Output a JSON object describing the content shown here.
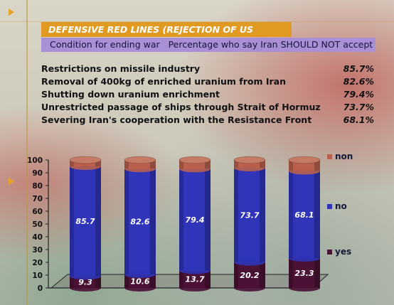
{
  "title": "DEFENSIVE RED LINES (REJECTION OF US CONDITIONS)",
  "subtitle_left": "Condition for ending war",
  "subtitle_right": "Percentage who say Iran SHOULD NOT accept",
  "conditions": [
    {
      "label": "Restrictions on missile industry",
      "value": "85.7%"
    },
    {
      "label": "Removal of 400kg of enriched uranium from Iran",
      "value": "82.6%"
    },
    {
      "label": "Shutting down uranium enrichment",
      "value": "79.4%"
    },
    {
      "label": "Unrestricted passage of ships through Strait of Hormuz",
      "value": "73.7%"
    },
    {
      "label": "Severing Iran's cooperation with the Resistance Front",
      "value": "68.1%"
    }
  ],
  "colors": {
    "accent": "#e19a21",
    "subtitle_bg": "#a98fd4",
    "yes": "#4a1235",
    "no": "#2f34b8",
    "non": "#b8614d"
  },
  "chart_data": {
    "type": "bar",
    "stacked": true,
    "categories": [
      "",
      "",
      "",
      "",
      ""
    ],
    "series": [
      {
        "name": "yes",
        "values": [
          9.3,
          10.6,
          13.7,
          20.2,
          23.3
        ],
        "color": "#4a1235"
      },
      {
        "name": "no",
        "values": [
          85.7,
          82.6,
          79.4,
          73.7,
          68.1
        ],
        "color": "#2f34b8"
      },
      {
        "name": "non",
        "values": [
          5,
          6.8,
          6.9,
          6.1,
          8.6
        ],
        "color": "#b8614d"
      }
    ],
    "value_labels": [
      [
        "9.3",
        "10.6",
        "13.7",
        "20.2",
        "23.3"
      ],
      [
        "85.7",
        "82.6",
        "79.4",
        "73.7",
        "68.1"
      ],
      [
        "5",
        "6.8",
        "6.9",
        "6.1",
        "8.6"
      ]
    ],
    "ylim": [
      0,
      100
    ],
    "yticks": [
      "0",
      "10",
      "20",
      "30",
      "40",
      "50",
      "60",
      "70",
      "80",
      "90",
      "100"
    ],
    "legend": [
      "non",
      "no",
      "yes"
    ],
    "legend_position": "right"
  }
}
